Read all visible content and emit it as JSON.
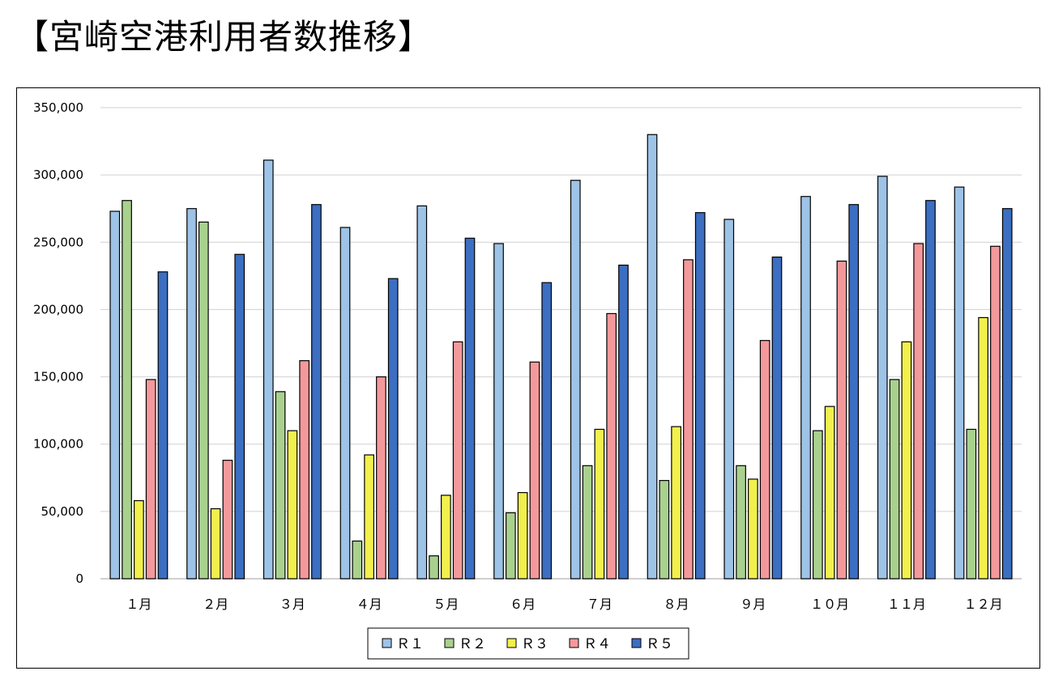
{
  "title": "【宮崎空港利用者数推移】",
  "colors": {
    "R1": "#9dc3e6",
    "R2": "#a9d18e",
    "R3": "#f2f04c",
    "R4": "#f4999b",
    "R5": "#3c6ec1",
    "grid": "#d0d0d0",
    "axis": "#bfbfbf",
    "bar_stroke": "#000000"
  },
  "chart_data": {
    "type": "bar",
    "title": "【宮崎空港利用者数推移】",
    "xlabel": "",
    "ylabel": "",
    "ylim": [
      0,
      350000
    ],
    "yticks": [
      0,
      50000,
      100000,
      150000,
      200000,
      250000,
      300000,
      350000
    ],
    "ytick_labels": [
      "0",
      "50,000",
      "100,000",
      "150,000",
      "200,000",
      "250,000",
      "300,000",
      "350,000"
    ],
    "grid": true,
    "legend_position": "bottom-center",
    "categories": [
      "１月",
      "２月",
      "３月",
      "４月",
      "５月",
      "６月",
      "７月",
      "８月",
      "９月",
      "１０月",
      "１１月",
      "１２月"
    ],
    "series": [
      {
        "name": "Ｒ１",
        "values": [
          273000,
          275000,
          311000,
          261000,
          277000,
          249000,
          296000,
          330000,
          267000,
          284000,
          299000,
          291000
        ]
      },
      {
        "name": "Ｒ２",
        "values": [
          281000,
          265000,
          139000,
          28000,
          17000,
          49000,
          84000,
          73000,
          84000,
          110000,
          148000,
          111000
        ]
      },
      {
        "name": "Ｒ３",
        "values": [
          58000,
          52000,
          110000,
          92000,
          62000,
          64000,
          111000,
          113000,
          74000,
          128000,
          176000,
          194000
        ]
      },
      {
        "name": "Ｒ４",
        "values": [
          148000,
          88000,
          162000,
          150000,
          176000,
          161000,
          197000,
          237000,
          177000,
          236000,
          249000,
          247000
        ]
      },
      {
        "name": "Ｒ５",
        "values": [
          228000,
          241000,
          278000,
          223000,
          253000,
          220000,
          233000,
          272000,
          239000,
          278000,
          281000,
          275000
        ]
      }
    ]
  }
}
